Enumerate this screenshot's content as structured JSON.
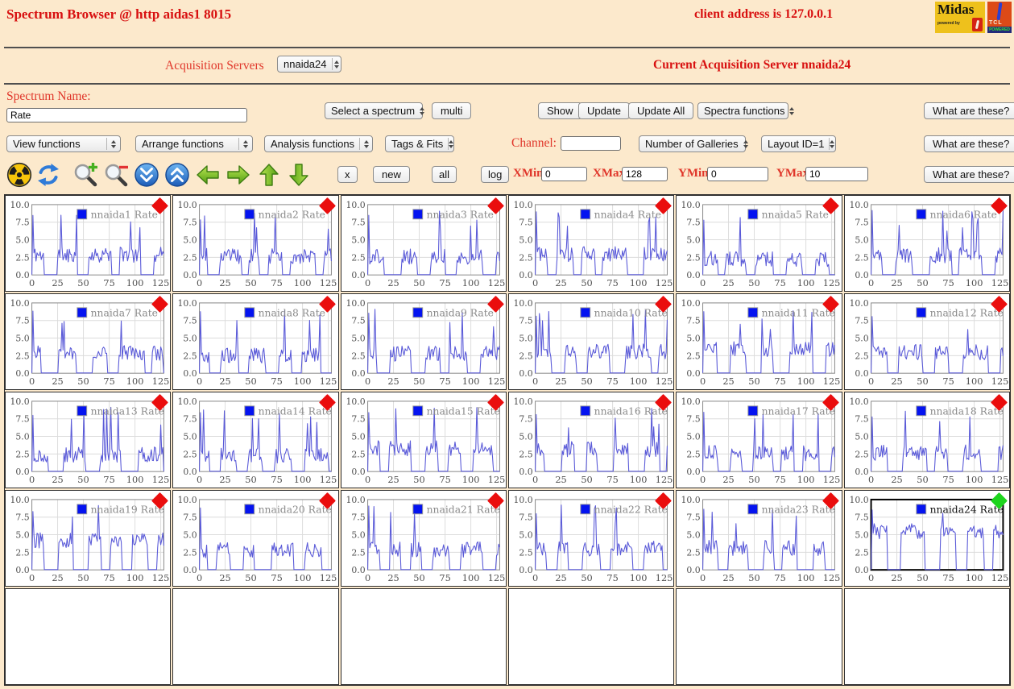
{
  "header": {
    "title": "Spectrum Browser @ http aidas1 8015",
    "client": "client address is 127.0.0.1",
    "logos": {
      "midas": {
        "text": "Midas",
        "sub": "powered by"
      },
      "tcl": {
        "text": "TCL",
        "powered": "POWERED"
      }
    }
  },
  "acquisition": {
    "label": "Acquisition Servers",
    "server_selected": "nnaida24",
    "current": "Current Acquisition Server nnaida24"
  },
  "spectrum_row": {
    "name_label": "Spectrum Name:",
    "name_value": "Rate",
    "select_spectrum": "Select a spectrum",
    "multi": "multi",
    "show": "Show",
    "update": "Update",
    "update_all": "Update All",
    "spectra_functions": "Spectra functions",
    "what": "What are these?"
  },
  "functions_row": {
    "view": "View functions",
    "arrange": "Arrange functions",
    "analysis": "Analysis functions",
    "tags": "Tags & Fits",
    "channel_label": "Channel:",
    "channel_value": "",
    "galleries": "Number of Galleries",
    "layout": "Layout ID=1",
    "what": "What are these?"
  },
  "toolbar": {
    "icons": [
      "radiation",
      "refresh",
      "zoom-in",
      "zoom-out",
      "fast-down",
      "fast-up",
      "arrow-left",
      "arrow-right",
      "arrow-up",
      "arrow-down"
    ],
    "x": "x",
    "new": "new",
    "all": "all",
    "log": "log",
    "xmin_label": "XMin",
    "xmin": "0",
    "xmax_label": "XMax",
    "xmax": "128",
    "ymin_label": "YMin",
    "ymin": "0",
    "ymax_label": "YMax",
    "ymax": "10",
    "what": "What are these?"
  },
  "chart_data": {
    "type": "line",
    "x_range": [
      0,
      128
    ],
    "y_range": [
      0,
      10
    ],
    "xticks": [
      "0",
      "25",
      "50",
      "75",
      "100",
      "125"
    ],
    "yticks": [
      "10.0",
      "7.5",
      "5.0",
      "2.5",
      "0.0"
    ],
    "line_color": "#5a5ad8",
    "grid_color": "#dcdcdc",
    "legend_swatch": "#0413f0",
    "diamond_red": "#ea0d0d",
    "diamond_green": "#1dd41d",
    "charts": [
      {
        "label": "nnaida1 Rate",
        "diamond": "#ea0d0d",
        "selected": false,
        "seed": 11,
        "base": 2.9,
        "spike": 0.06
      },
      {
        "label": "nnaida2 Rate",
        "diamond": "#ea0d0d",
        "selected": false,
        "seed": 23,
        "base": 2.7,
        "spike": 0.07
      },
      {
        "label": "nnaida3 Rate",
        "diamond": "#ea0d0d",
        "selected": false,
        "seed": 37,
        "base": 2.6,
        "spike": 0.05
      },
      {
        "label": "nnaida4 Rate",
        "diamond": "#ea0d0d",
        "selected": false,
        "seed": 41,
        "base": 3.0,
        "spike": 0.05
      },
      {
        "label": "nnaida5 Rate",
        "diamond": "#ea0d0d",
        "selected": false,
        "seed": 53,
        "base": 2.3,
        "spike": 0.05
      },
      {
        "label": "nnaida6 Rate",
        "diamond": "#ea0d0d",
        "selected": false,
        "seed": 67,
        "base": 2.8,
        "spike": 0.06
      },
      {
        "label": "nnaida7 Rate",
        "diamond": "#ea0d0d",
        "selected": false,
        "seed": 71,
        "base": 2.9,
        "spike": 0.06
      },
      {
        "label": "nnaida8 Rate",
        "diamond": "#ea0d0d",
        "selected": false,
        "seed": 83,
        "base": 2.5,
        "spike": 0.05
      },
      {
        "label": "nnaida9 Rate",
        "diamond": "#ea0d0d",
        "selected": false,
        "seed": 97,
        "base": 2.8,
        "spike": 0.07
      },
      {
        "label": "nnaida10 Rate",
        "diamond": "#ea0d0d",
        "selected": false,
        "seed": 103,
        "base": 3.1,
        "spike": 0.06
      },
      {
        "label": "nnaida11 Rate",
        "diamond": "#ea0d0d",
        "selected": false,
        "seed": 113,
        "base": 3.4,
        "spike": 0.06
      },
      {
        "label": "nnaida12 Rate",
        "diamond": "#ea0d0d",
        "selected": false,
        "seed": 127,
        "base": 3.0,
        "spike": 0.06
      },
      {
        "label": "nnaida13 Rate",
        "diamond": "#ea0d0d",
        "selected": false,
        "seed": 131,
        "base": 2.4,
        "spike": 0.06
      },
      {
        "label": "nnaida14 Rate",
        "diamond": "#ea0d0d",
        "selected": false,
        "seed": 139,
        "base": 2.3,
        "spike": 0.05
      },
      {
        "label": "nnaida15 Rate",
        "diamond": "#ea0d0d",
        "selected": false,
        "seed": 149,
        "base": 3.3,
        "spike": 0.06
      },
      {
        "label": "nnaida16 Rate",
        "diamond": "#ea0d0d",
        "selected": false,
        "seed": 151,
        "base": 3.2,
        "spike": 0.06
      },
      {
        "label": "nnaida17 Rate",
        "diamond": "#ea0d0d",
        "selected": false,
        "seed": 163,
        "base": 2.6,
        "spike": 0.06
      },
      {
        "label": "nnaida18 Rate",
        "diamond": "#ea0d0d",
        "selected": false,
        "seed": 173,
        "base": 2.7,
        "spike": 0.06
      },
      {
        "label": "nnaida19 Rate",
        "diamond": "#ea0d0d",
        "selected": false,
        "seed": 181,
        "base": 4.2,
        "spike": 0.05
      },
      {
        "label": "nnaida20 Rate",
        "diamond": "#ea0d0d",
        "selected": false,
        "seed": 193,
        "base": 2.8,
        "spike": 0.06
      },
      {
        "label": "nnaida21 Rate",
        "diamond": "#ea0d0d",
        "selected": false,
        "seed": 199,
        "base": 2.9,
        "spike": 0.05
      },
      {
        "label": "nnaida22 Rate",
        "diamond": "#ea0d0d",
        "selected": false,
        "seed": 211,
        "base": 3.0,
        "spike": 0.06
      },
      {
        "label": "nnaida23 Rate",
        "diamond": "#ea0d0d",
        "selected": false,
        "seed": 223,
        "base": 3.1,
        "spike": 0.06
      },
      {
        "label": "nnaida24 Rate",
        "diamond": "#1dd41d",
        "selected": true,
        "seed": 229,
        "base": 5.5,
        "spike": 0.04
      }
    ]
  }
}
